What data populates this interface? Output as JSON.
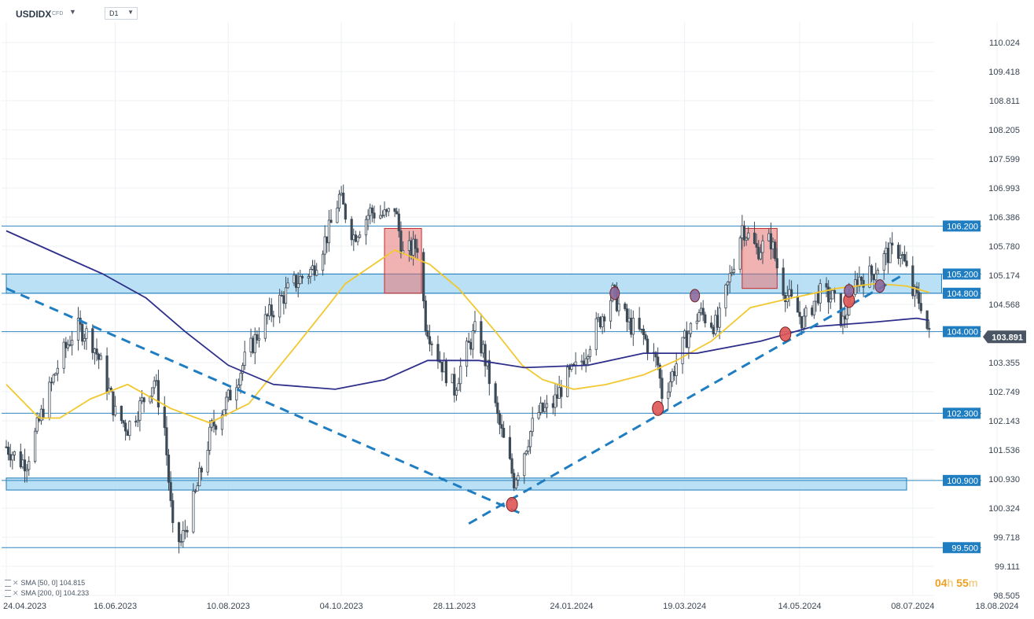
{
  "header": {
    "symbol": "USDIDX",
    "symbol_suffix": "CFD",
    "timeframe": "D1"
  },
  "indicators": [
    {
      "label": "SMA [50, 0] 104.815",
      "color": "#f2c830"
    },
    {
      "label": "SMA [200, 0] 104.233",
      "color": "#2e2f8a"
    }
  ],
  "timer": {
    "hours": "04",
    "h": "h",
    "minutes": "55",
    "m": "m"
  },
  "chart_data": {
    "type": "candlestick",
    "instrument": "USDIDX",
    "timeframe": "D1",
    "ylim": [
      98.555,
      110.5
    ],
    "y_ticks": [
      "110.024",
      "109.418",
      "108.811",
      "108.205",
      "107.599",
      "106.993",
      "106.386",
      "105.780",
      "105.174",
      "104.568",
      "103.962",
      "103.355",
      "102.749",
      "102.143",
      "101.536",
      "100.930",
      "100.324",
      "99.718",
      "99.111",
      "98.505"
    ],
    "x_ticks": [
      "24.04.2023",
      "16.06.2023",
      "10.08.2023",
      "04.10.2023",
      "28.11.2023",
      "24.01.2024",
      "19.03.2024",
      "14.05.2024",
      "08.07.2024",
      "18.08.2024"
    ],
    "x_range": [
      "2023-04-24",
      "2024-08-18"
    ],
    "last_price": "103.891",
    "price_series": [
      [
        "2023-04-24",
        101.6
      ],
      [
        "2023-05-01",
        101.3
      ],
      [
        "2023-05-04",
        101.3
      ],
      [
        "2023-05-12",
        102.4
      ],
      [
        "2023-05-20",
        103.4
      ],
      [
        "2023-05-28",
        104.1
      ],
      [
        "2023-06-04",
        103.9
      ],
      [
        "2023-06-10",
        103.2
      ],
      [
        "2023-06-16",
        102.3
      ],
      [
        "2023-06-22",
        102.0
      ],
      [
        "2023-06-30",
        102.6
      ],
      [
        "2023-07-05",
        103.0
      ],
      [
        "2023-07-10",
        102.0
      ],
      [
        "2023-07-14",
        99.8
      ],
      [
        "2023-07-18",
        99.6
      ],
      [
        "2023-07-25",
        100.6
      ],
      [
        "2023-08-02",
        102.0
      ],
      [
        "2023-08-10",
        102.6
      ],
      [
        "2023-08-18",
        103.4
      ],
      [
        "2023-08-26",
        104.1
      ],
      [
        "2023-09-03",
        104.6
      ],
      [
        "2023-09-11",
        105.0
      ],
      [
        "2023-09-20",
        105.3
      ],
      [
        "2023-09-28",
        106.1
      ],
      [
        "2023-10-03",
        106.8
      ],
      [
        "2023-10-10",
        106.0
      ],
      [
        "2023-10-18",
        106.5
      ],
      [
        "2023-10-26",
        106.4
      ],
      [
        "2023-10-30",
        106.6
      ],
      [
        "2023-11-03",
        105.6
      ],
      [
        "2023-11-10",
        105.8
      ],
      [
        "2023-11-14",
        104.2
      ],
      [
        "2023-11-20",
        103.5
      ],
      [
        "2023-11-28",
        102.8
      ],
      [
        "2023-12-02",
        103.4
      ],
      [
        "2023-12-08",
        104.0
      ],
      [
        "2023-12-12",
        103.6
      ],
      [
        "2023-12-19",
        102.2
      ],
      [
        "2023-12-27",
        100.9
      ],
      [
        "2023-12-31",
        101.4
      ],
      [
        "2024-01-07",
        102.3
      ],
      [
        "2024-01-14",
        102.4
      ],
      [
        "2024-01-21",
        103.0
      ],
      [
        "2024-01-28",
        103.3
      ],
      [
        "2024-02-04",
        104.0
      ],
      [
        "2024-02-13",
        104.8
      ],
      [
        "2024-02-20",
        104.2
      ],
      [
        "2024-02-28",
        103.9
      ],
      [
        "2024-03-06",
        103.3
      ],
      [
        "2024-03-08",
        102.7
      ],
      [
        "2024-03-12",
        103.0
      ],
      [
        "2024-03-19",
        103.8
      ],
      [
        "2024-03-26",
        104.4
      ],
      [
        "2024-04-04",
        104.1
      ],
      [
        "2024-04-11",
        105.3
      ],
      [
        "2024-04-16",
        106.2
      ],
      [
        "2024-04-23",
        105.7
      ],
      [
        "2024-04-30",
        105.9
      ],
      [
        "2024-05-05",
        105.0
      ],
      [
        "2024-05-10",
        104.6
      ],
      [
        "2024-05-16",
        104.2
      ],
      [
        "2024-05-23",
        104.8
      ],
      [
        "2024-05-30",
        104.7
      ],
      [
        "2024-06-04",
        104.2
      ],
      [
        "2024-06-11",
        105.1
      ],
      [
        "2024-06-18",
        105.2
      ],
      [
        "2024-06-25",
        105.6
      ],
      [
        "2024-07-02",
        105.7
      ],
      [
        "2024-07-08",
        104.8
      ],
      [
        "2024-07-12",
        104.6
      ],
      [
        "2024-07-16",
        103.9
      ]
    ],
    "sma50": [
      [
        "2023-04-24",
        102.9
      ],
      [
        "2023-05-10",
        102.2
      ],
      [
        "2023-05-20",
        102.2
      ],
      [
        "2023-06-04",
        102.6
      ],
      [
        "2023-06-22",
        102.9
      ],
      [
        "2023-07-13",
        102.4
      ],
      [
        "2023-08-01",
        102.1
      ],
      [
        "2023-08-20",
        102.5
      ],
      [
        "2023-09-10",
        103.6
      ],
      [
        "2023-09-25",
        104.4
      ],
      [
        "2023-10-06",
        105.0
      ],
      [
        "2023-10-30",
        105.7
      ],
      [
        "2023-11-16",
        105.4
      ],
      [
        "2023-11-30",
        104.9
      ],
      [
        "2023-12-18",
        104.0
      ],
      [
        "2023-12-31",
        103.3
      ],
      [
        "2024-01-10",
        103.0
      ],
      [
        "2024-01-25",
        102.8
      ],
      [
        "2024-02-10",
        102.9
      ],
      [
        "2024-02-28",
        103.1
      ],
      [
        "2024-03-15",
        103.4
      ],
      [
        "2024-04-01",
        103.8
      ],
      [
        "2024-04-20",
        104.5
      ],
      [
        "2024-05-10",
        104.7
      ],
      [
        "2024-06-01",
        104.9
      ],
      [
        "2024-06-20",
        105.0
      ],
      [
        "2024-07-05",
        104.95
      ],
      [
        "2024-07-16",
        104.815
      ]
    ],
    "sma200": [
      [
        "2023-04-24",
        106.1
      ],
      [
        "2023-05-20",
        105.6
      ],
      [
        "2023-06-10",
        105.2
      ],
      [
        "2023-07-01",
        104.7
      ],
      [
        "2023-07-20",
        104.0
      ],
      [
        "2023-08-10",
        103.3
      ],
      [
        "2023-09-01",
        102.9
      ],
      [
        "2023-10-01",
        102.8
      ],
      [
        "2023-10-25",
        103.0
      ],
      [
        "2023-11-15",
        103.4
      ],
      [
        "2023-12-10",
        103.4
      ],
      [
        "2024-01-01",
        103.25
      ],
      [
        "2024-02-01",
        103.3
      ],
      [
        "2024-02-28",
        103.55
      ],
      [
        "2024-03-25",
        103.55
      ],
      [
        "2024-04-25",
        103.8
      ],
      [
        "2024-05-20",
        104.1
      ],
      [
        "2024-06-20",
        104.2
      ],
      [
        "2024-07-10",
        104.28
      ],
      [
        "2024-07-16",
        104.233
      ]
    ],
    "levels": [
      {
        "label": "106.200",
        "value": 106.2
      },
      {
        "label": "105.200",
        "value": 105.2
      },
      {
        "label": "104.800",
        "value": 104.8
      },
      {
        "label": "104.000",
        "value": 104.0
      },
      {
        "label": "102.300",
        "value": 102.3
      },
      {
        "label": "100.900",
        "value": 100.9
      },
      {
        "label": "99.500",
        "value": 99.5
      }
    ],
    "zones": [
      {
        "from": 104.8,
        "to": 105.2,
        "start": "2023-04-24",
        "end": "2024-07-22"
      },
      {
        "from": 100.7,
        "to": 100.95,
        "start": "2023-04-24",
        "end": "2024-07-05"
      }
    ],
    "trendlines": [
      {
        "from": [
          "2023-04-24",
          104.9
        ],
        "to": [
          "2023-12-31",
          100.2
        ],
        "style": "dashed"
      },
      {
        "from": [
          "2023-12-05",
          100.0
        ],
        "to": [
          "2024-07-04",
          105.2
        ],
        "style": "dashed"
      }
    ],
    "highlight_boxes": [
      {
        "start": "2023-10-25",
        "end": "2023-11-12",
        "from": 104.8,
        "to": 106.15
      },
      {
        "start": "2024-04-16",
        "end": "2024-05-03",
        "from": 104.9,
        "to": 106.15
      }
    ],
    "markers": [
      {
        "date": "2023-12-26",
        "value": 100.4,
        "color": "red"
      },
      {
        "date": "2024-03-06",
        "value": 102.4,
        "color": "red"
      },
      {
        "date": "2024-05-07",
        "value": 103.95,
        "color": "red"
      },
      {
        "date": "2024-06-07",
        "value": 104.65,
        "color": "red"
      },
      {
        "date": "2024-02-14",
        "value": 104.8,
        "color": "purple"
      },
      {
        "date": "2024-03-24",
        "value": 104.75,
        "color": "purple"
      },
      {
        "date": "2024-06-07",
        "value": 104.85,
        "color": "purple"
      },
      {
        "date": "2024-06-22",
        "value": 104.95,
        "color": "purple"
      }
    ]
  }
}
